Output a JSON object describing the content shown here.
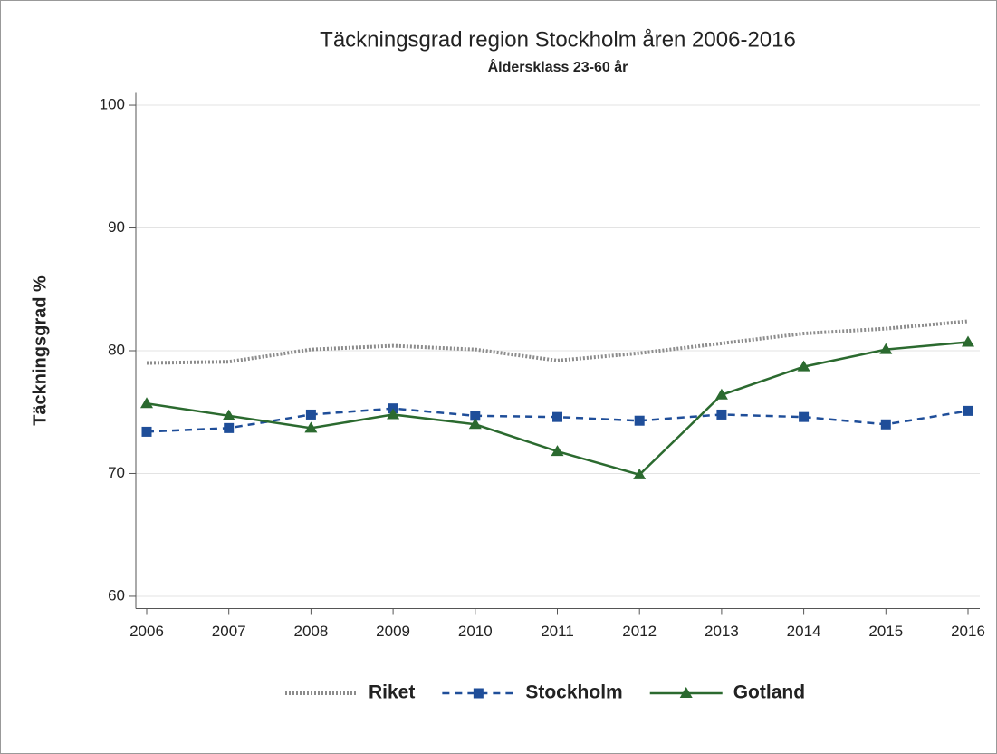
{
  "chart_data": {
    "type": "line",
    "title": "Täckningsgrad region Stockholm åren 2006-2016",
    "subtitle": "Åldersklass 23-60 år",
    "y_label": "Täckningsgrad %",
    "categories": [
      "2006",
      "2007",
      "2008",
      "2009",
      "2010",
      "2011",
      "2012",
      "2013",
      "2014",
      "2015",
      "2016"
    ],
    "series": [
      {
        "name": "Riket",
        "color": "#8c8c8c",
        "dash": "dotted",
        "marker": "none",
        "values": [
          79.0,
          79.1,
          80.1,
          80.4,
          80.1,
          79.2,
          79.8,
          80.6,
          81.4,
          81.8,
          82.4
        ]
      },
      {
        "name": "Stockholm",
        "color": "#1f4e99",
        "dash": "dashed",
        "marker": "square",
        "values": [
          73.4,
          73.7,
          74.8,
          75.3,
          74.7,
          74.6,
          74.3,
          74.8,
          74.6,
          74.0,
          75.1
        ]
      },
      {
        "name": "Gotland",
        "color": "#2b6a2f",
        "dash": "solid",
        "marker": "triangle",
        "values": [
          75.7,
          74.7,
          73.7,
          74.8,
          74.0,
          71.8,
          69.9,
          76.4,
          78.7,
          80.1,
          80.7
        ]
      }
    ],
    "ylim": [
      59,
      101
    ],
    "yticks": [
      60,
      70,
      80,
      90,
      100
    ],
    "grid": true,
    "legend": "bottom"
  }
}
